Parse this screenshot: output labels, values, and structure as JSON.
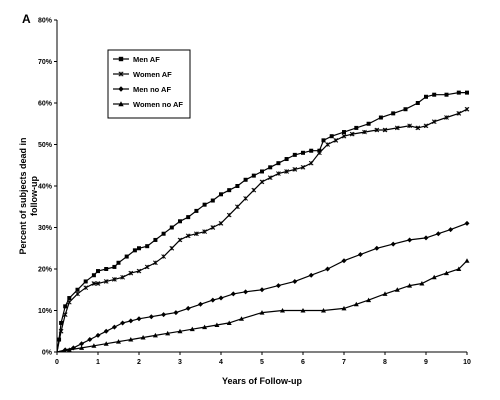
{
  "chart_data": {
    "type": "line",
    "panel_label": "A",
    "title": "",
    "xlabel": "Years of Follow-up",
    "ylabel_lines": [
      "Percent of subjects dead in",
      "follow-up"
    ],
    "xlim": [
      0,
      10
    ],
    "ylim": [
      0,
      80
    ],
    "x_ticks": [
      "0",
      "1",
      "2",
      "3",
      "4",
      "5",
      "6",
      "7",
      "8",
      "9",
      "10"
    ],
    "y_ticks": [
      "0%",
      "10%",
      "20%",
      "30%",
      "40%",
      "50%",
      "60%",
      "70%",
      "80%"
    ],
    "grid": false,
    "legend_position": "top-left",
    "series": [
      {
        "name": "Men AF",
        "marker": "square",
        "x": [
          0,
          0.05,
          0.1,
          0.2,
          0.3,
          0.5,
          0.7,
          0.9,
          1,
          1.2,
          1.4,
          1.5,
          1.7,
          1.9,
          2,
          2.2,
          2.4,
          2.6,
          2.8,
          3,
          3.2,
          3.4,
          3.6,
          3.8,
          4,
          4.2,
          4.4,
          4.6,
          4.8,
          5,
          5.2,
          5.4,
          5.6,
          5.8,
          6,
          6.2,
          6.4,
          6.5,
          6.7,
          7,
          7.3,
          7.6,
          7.9,
          8.2,
          8.5,
          8.8,
          9,
          9.2,
          9.5,
          9.8,
          10
        ],
        "values": [
          0,
          3,
          7,
          11,
          13,
          15,
          17,
          18.5,
          19.5,
          20,
          20.5,
          21.5,
          23,
          24.5,
          25,
          25.5,
          27,
          28.5,
          30,
          31.5,
          32.5,
          34,
          35.5,
          36.5,
          38,
          39,
          40,
          41.5,
          42.5,
          43.5,
          44.5,
          45.5,
          46.5,
          47.5,
          48,
          48.5,
          48.5,
          51,
          52,
          53,
          54,
          55,
          56.5,
          57.5,
          58.5,
          60,
          61.5,
          62,
          62,
          62.5,
          62.5
        ]
      },
      {
        "name": "Women AF",
        "marker": "x",
        "x": [
          0,
          0.1,
          0.2,
          0.3,
          0.5,
          0.7,
          0.9,
          1,
          1.2,
          1.4,
          1.6,
          1.8,
          2,
          2.2,
          2.4,
          2.6,
          2.8,
          3,
          3.2,
          3.4,
          3.6,
          3.8,
          4,
          4.2,
          4.4,
          4.6,
          4.8,
          5,
          5.2,
          5.4,
          5.6,
          5.8,
          6,
          6.2,
          6.4,
          6.6,
          6.8,
          7,
          7.2,
          7.5,
          7.8,
          8,
          8.3,
          8.6,
          8.8,
          9,
          9.2,
          9.5,
          9.8,
          10
        ],
        "values": [
          0,
          5,
          9,
          12,
          14,
          15.5,
          16.5,
          16.5,
          17,
          17.5,
          18,
          19,
          19.5,
          20.5,
          21.5,
          23,
          25,
          27,
          28,
          28.5,
          29,
          30,
          31,
          33,
          35,
          37,
          39,
          41,
          42,
          43,
          43.5,
          44,
          44.5,
          45.5,
          48,
          50,
          51,
          52,
          52.5,
          53,
          53.5,
          53.5,
          54,
          54.5,
          54,
          54.5,
          55.5,
          56.5,
          57.5,
          58.5
        ]
      },
      {
        "name": "Men no AF",
        "marker": "diamond",
        "x": [
          0,
          0.2,
          0.4,
          0.6,
          0.8,
          1,
          1.2,
          1.4,
          1.6,
          1.8,
          2,
          2.3,
          2.6,
          2.9,
          3.2,
          3.5,
          3.8,
          4,
          4.3,
          4.6,
          5,
          5.4,
          5.8,
          6.2,
          6.6,
          7,
          7.4,
          7.8,
          8.2,
          8.6,
          9,
          9.3,
          9.6,
          10
        ],
        "values": [
          0,
          0.5,
          1,
          2,
          3,
          4,
          5,
          6,
          7,
          7.5,
          8,
          8.5,
          9,
          9.5,
          10.5,
          11.5,
          12.5,
          13,
          14,
          14.5,
          15,
          16,
          17,
          18.5,
          20,
          22,
          23.5,
          25,
          26,
          27,
          27.5,
          28.5,
          29.5,
          31
        ]
      },
      {
        "name": "Women no AF",
        "marker": "triangle",
        "x": [
          0,
          0.3,
          0.6,
          0.9,
          1.2,
          1.5,
          1.8,
          2.1,
          2.4,
          2.7,
          3,
          3.3,
          3.6,
          3.9,
          4.2,
          4.5,
          5,
          5.5,
          6,
          6.5,
          7,
          7.3,
          7.6,
          8,
          8.3,
          8.6,
          8.9,
          9.2,
          9.5,
          9.8,
          10
        ],
        "values": [
          0,
          0.5,
          1,
          1.5,
          2,
          2.5,
          3,
          3.5,
          4,
          4.5,
          5,
          5.5,
          6,
          6.5,
          7,
          8,
          9.5,
          10,
          10,
          10,
          10.5,
          11.5,
          12.5,
          14,
          15,
          16,
          16.5,
          18,
          19,
          20,
          22
        ]
      }
    ]
  }
}
